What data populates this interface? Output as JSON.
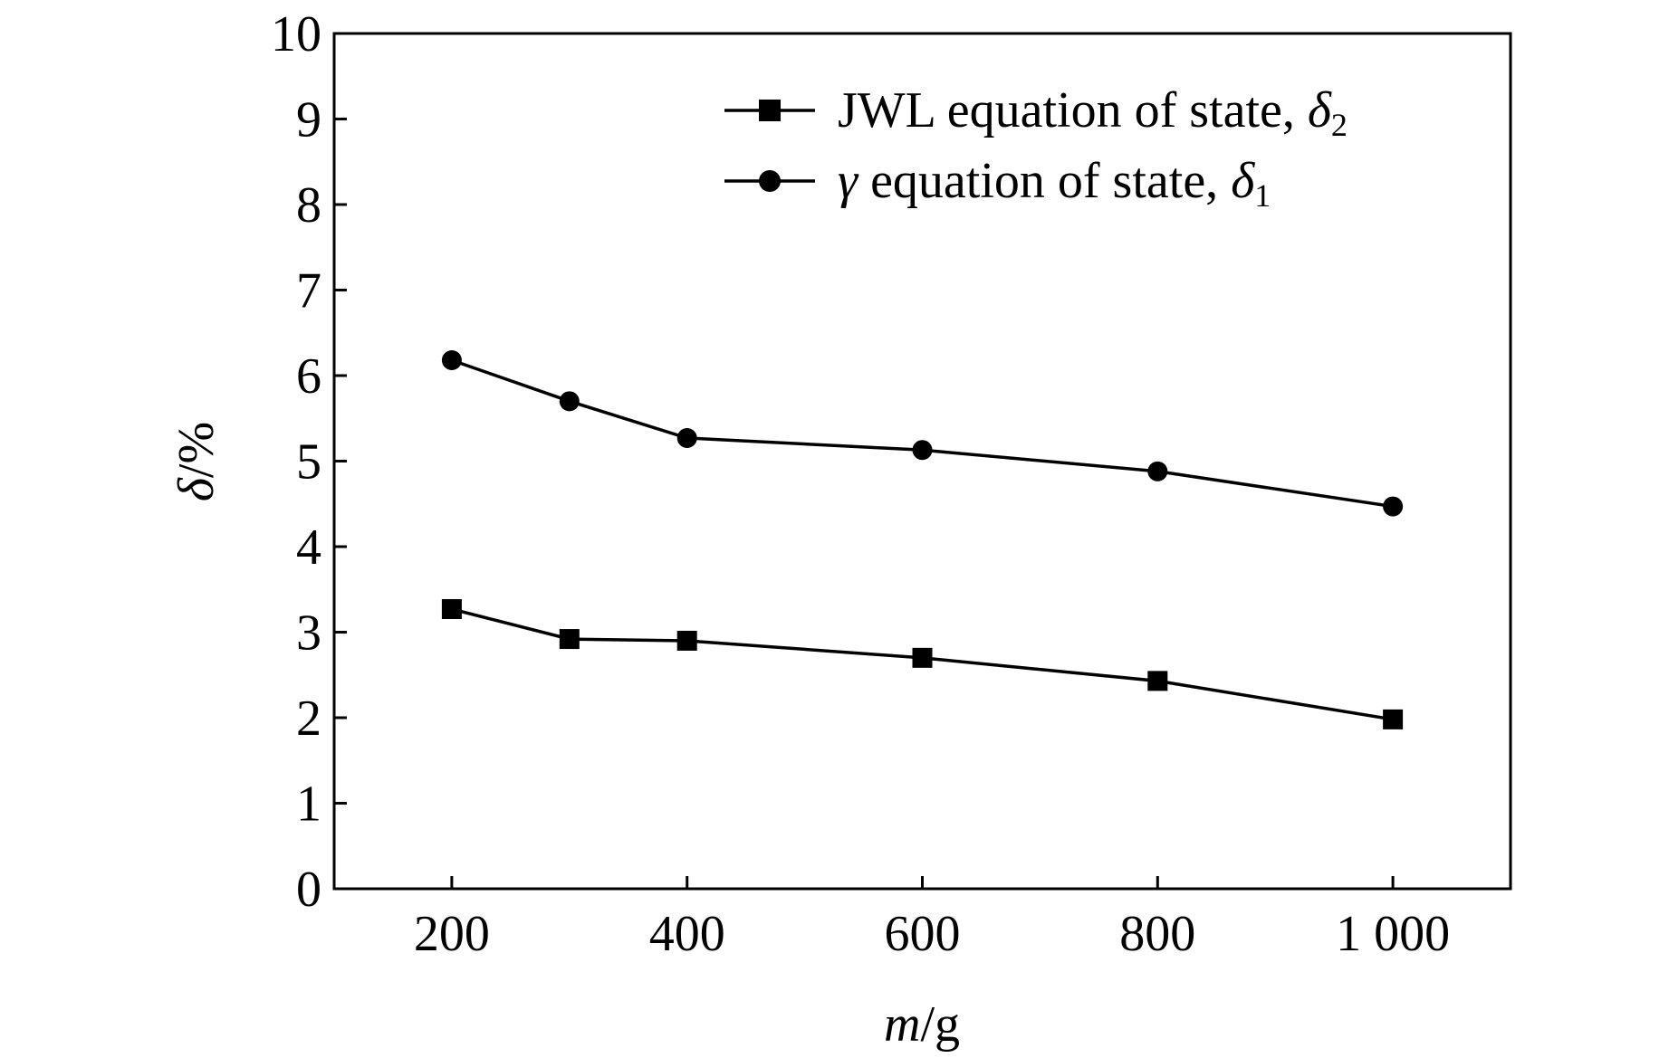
{
  "chart_data": {
    "type": "line",
    "xlabel": {
      "italic": "m",
      "rest": "/g"
    },
    "ylabel": {
      "italic": "δ",
      "rest": "/%"
    },
    "xlim": [
      100,
      1100
    ],
    "ylim": [
      0,
      10
    ],
    "x_ticks": [
      200,
      400,
      600,
      800,
      1000
    ],
    "x_tick_labels": [
      "200",
      "400",
      "600",
      "800",
      "1 000"
    ],
    "y_ticks": [
      0,
      1,
      2,
      3,
      4,
      5,
      6,
      7,
      8,
      9,
      10
    ],
    "y_tick_labels": [
      "0",
      "1",
      "2",
      "3",
      "4",
      "5",
      "6",
      "7",
      "8",
      "9",
      "10"
    ],
    "grid": false,
    "legend_position": "top-right",
    "series": [
      {
        "name": "JWL equation of state, δ2",
        "legend_main": "JWL equation of state, ",
        "legend_symbol": "δ",
        "legend_sub": "2",
        "marker": "square",
        "x": [
          200,
          300,
          400,
          600,
          800,
          1000
        ],
        "y": [
          3.27,
          2.92,
          2.9,
          2.7,
          2.43,
          1.98
        ]
      },
      {
        "name": "γ equation of state, δ1",
        "legend_prefix": "γ",
        "legend_main": " equation of state, ",
        "legend_symbol": "δ",
        "legend_sub": "1",
        "marker": "circle",
        "x": [
          200,
          300,
          400,
          600,
          800,
          1000
        ],
        "y": [
          6.18,
          5.7,
          5.27,
          5.13,
          4.88,
          4.47
        ]
      }
    ]
  }
}
